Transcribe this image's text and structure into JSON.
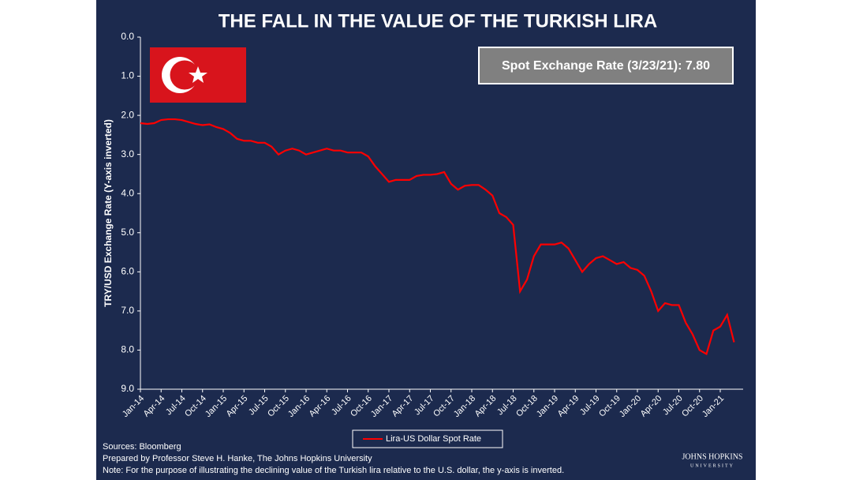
{
  "chart_data": {
    "type": "line",
    "title": "THE FALL IN THE VALUE OF THE TURKISH LIRA",
    "annotation": "Spot Exchange Rate (3/23/21): 7.80",
    "y_label": "TRY/USD Exchange Rate (Y-axis inverted)",
    "categories": [
      "Jan-14",
      null,
      null,
      "Apr-14",
      null,
      null,
      "Jul-14",
      null,
      null,
      "Oct-14",
      null,
      null,
      "Jan-15",
      null,
      null,
      "Apr-15",
      null,
      null,
      "Jul-15",
      null,
      null,
      "Oct-15",
      null,
      null,
      "Jan-16",
      null,
      null,
      "Apr-16",
      null,
      null,
      "Jul-16",
      null,
      null,
      "Oct-16",
      null,
      null,
      "Jan-17",
      null,
      null,
      "Apr-17",
      null,
      null,
      "Jul-17",
      null,
      null,
      "Oct-17",
      null,
      null,
      "Jan-18",
      null,
      null,
      "Apr-18",
      null,
      null,
      "Jul-18",
      null,
      null,
      "Oct-18",
      null,
      null,
      "Jan-19",
      null,
      null,
      "Apr-19",
      null,
      null,
      "Jul-19",
      null,
      null,
      "Oct-19",
      null,
      null,
      "Jan-20",
      null,
      null,
      "Apr-20",
      null,
      null,
      "Jul-20",
      null,
      null,
      "Oct-20",
      null,
      null,
      "Jan-21",
      null,
      null
    ],
    "series": [
      {
        "name": "Lira-US Dollar Spot Rate",
        "color": "#ff0000",
        "values": [
          2.2,
          2.22,
          2.2,
          2.12,
          2.1,
          2.1,
          2.12,
          2.17,
          2.22,
          2.25,
          2.23,
          2.3,
          2.35,
          2.45,
          2.6,
          2.65,
          2.65,
          2.7,
          2.7,
          2.8,
          3.0,
          2.9,
          2.85,
          2.9,
          3.0,
          2.95,
          2.9,
          2.85,
          2.9,
          2.9,
          2.95,
          2.95,
          2.95,
          3.05,
          3.3,
          3.5,
          3.7,
          3.65,
          3.65,
          3.65,
          3.55,
          3.52,
          3.52,
          3.5,
          3.45,
          3.75,
          3.9,
          3.8,
          3.78,
          3.78,
          3.9,
          4.05,
          4.5,
          4.6,
          4.8,
          6.5,
          6.2,
          5.6,
          5.3,
          5.3,
          5.3,
          5.25,
          5.4,
          5.7,
          6.0,
          5.8,
          5.65,
          5.6,
          5.7,
          5.8,
          5.75,
          5.9,
          5.95,
          6.1,
          6.5,
          7.0,
          6.8,
          6.85,
          6.85,
          7.3,
          7.6,
          8.0,
          8.1,
          7.5,
          7.4,
          7.1,
          7.8
        ]
      }
    ],
    "ylim": [
      0,
      9
    ],
    "y_inverted": true,
    "yticks": [
      {
        "value": 0,
        "label": "0.0"
      },
      {
        "value": 1,
        "label": "1.0"
      },
      {
        "value": 2,
        "label": "2.0"
      },
      {
        "value": 3,
        "label": "3.0"
      },
      {
        "value": 4,
        "label": "4.0"
      },
      {
        "value": 5,
        "label": "5.0"
      },
      {
        "value": 6,
        "label": "6.0"
      },
      {
        "value": 7,
        "label": "7.0"
      },
      {
        "value": 8,
        "label": "8.0"
      },
      {
        "value": 9,
        "label": "9.0"
      }
    ],
    "grid": false,
    "legend": "bottom",
    "notes": [
      "Sources: Bloomberg",
      "Prepared by Professor Steve H. Hanke, The Johns Hopkins University",
      "Note: For the purpose of illustrating the declining value of the Turkish lira relative to the U.S. dollar, the y-axis is inverted."
    ],
    "logo": [
      "JOHNS HOPKINS",
      "UNIVERSITY"
    ]
  }
}
